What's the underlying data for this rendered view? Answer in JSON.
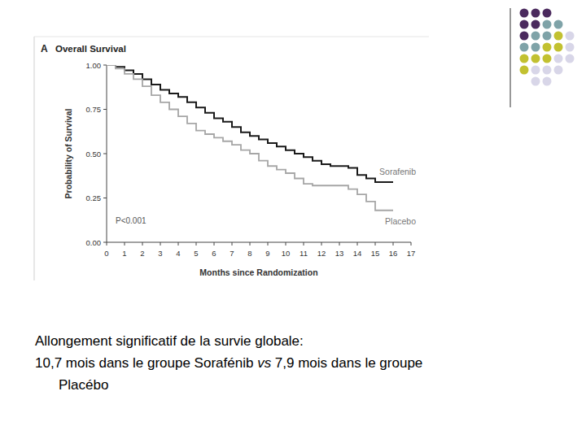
{
  "chart_data": {
    "type": "line",
    "title": "Overall Survival",
    "annotations": [
      "A",
      "P<0.001"
    ],
    "xlabel": "Months since Randomization",
    "ylabel": "Probability of Survival",
    "x": [
      0,
      0.5,
      1,
      1.5,
      2,
      2.5,
      3,
      3.5,
      4,
      4.5,
      5,
      5.5,
      6,
      6.5,
      7,
      7.5,
      8,
      8.5,
      9,
      9.5,
      10,
      10.5,
      11,
      11.5,
      12,
      12.5,
      13,
      13.5,
      14,
      14.5,
      15,
      15.5,
      16
    ],
    "series": [
      {
        "name": "Sorafenib",
        "color": "#1a1a1a",
        "values": [
          1.0,
          0.99,
          0.97,
          0.95,
          0.92,
          0.89,
          0.86,
          0.84,
          0.82,
          0.79,
          0.76,
          0.73,
          0.7,
          0.68,
          0.65,
          0.62,
          0.6,
          0.58,
          0.56,
          0.54,
          0.52,
          0.5,
          0.48,
          0.46,
          0.44,
          0.43,
          0.43,
          0.42,
          0.38,
          0.36,
          0.34,
          0.34,
          0.34
        ]
      },
      {
        "name": "Placebo",
        "color": "#a6a6a6",
        "values": [
          1.0,
          0.98,
          0.95,
          0.92,
          0.88,
          0.83,
          0.79,
          0.75,
          0.71,
          0.67,
          0.63,
          0.61,
          0.59,
          0.57,
          0.55,
          0.52,
          0.5,
          0.46,
          0.43,
          0.41,
          0.39,
          0.36,
          0.33,
          0.32,
          0.32,
          0.32,
          0.32,
          0.3,
          0.27,
          0.23,
          0.18,
          0.18,
          0.18
        ]
      }
    ],
    "line_style": "step",
    "legend": "inline",
    "grid": false,
    "xlim": [
      0,
      17
    ],
    "xticks": [
      0,
      1,
      2,
      3,
      4,
      5,
      6,
      7,
      8,
      9,
      10,
      11,
      12,
      13,
      14,
      15,
      16,
      17
    ],
    "ylim": [
      0,
      1
    ],
    "yticks": [
      {
        "value": 0,
        "label": "0.00"
      },
      {
        "value": 0.25,
        "label": "0.25"
      },
      {
        "value": 0.5,
        "label": "0.50"
      },
      {
        "value": 0.75,
        "label": "0.75"
      },
      {
        "value": 1,
        "label": "1.00"
      }
    ]
  },
  "caption": {
    "lines": [
      {
        "segments": [
          {
            "text": "Allongement significatif de la survie globale:"
          }
        ]
      },
      {
        "segments": [
          {
            "text": "10,7 mois dans le groupe Sorafénib "
          },
          {
            "text": "vs",
            "italic": true
          },
          {
            "text": " 7,9 mois dans le groupe"
          }
        ]
      },
      {
        "segments": [
          {
            "text": "Placébo"
          }
        ]
      }
    ]
  }
}
